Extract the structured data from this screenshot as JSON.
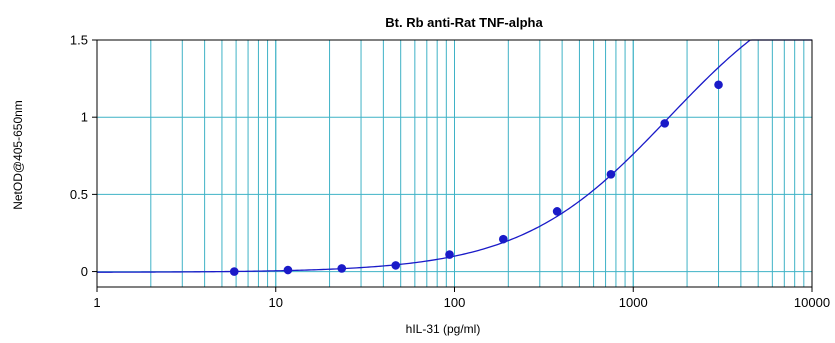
{
  "chart_data": {
    "type": "scatter",
    "title": "Bt. Rb anti-Rat TNF-alpha",
    "xlabel": "hIL-31 (pg/ml)",
    "ylabel": "NetOD@405-650nm",
    "xscale": "log",
    "xlim": [
      1,
      10000
    ],
    "ylim": [
      -0.1,
      1.5
    ],
    "x_ticks": [
      1,
      10,
      100,
      1000,
      10000
    ],
    "x_tick_labels": [
      "1",
      "10",
      "100",
      "1000",
      "10000"
    ],
    "y_ticks": [
      0,
      0.5,
      1,
      1.5
    ],
    "y_tick_labels": [
      "0",
      "0.5",
      "1",
      "1.5"
    ],
    "grid": true,
    "legend": "none",
    "series": [
      {
        "marker": "circle",
        "points": [
          {
            "x": 5.86,
            "y": 0.0
          },
          {
            "x": 11.7,
            "y": 0.01
          },
          {
            "x": 23.4,
            "y": 0.02
          },
          {
            "x": 46.9,
            "y": 0.04
          },
          {
            "x": 93.8,
            "y": 0.11
          },
          {
            "x": 187.5,
            "y": 0.21
          },
          {
            "x": 375,
            "y": 0.39
          },
          {
            "x": 750,
            "y": 0.63
          },
          {
            "x": 1500,
            "y": 0.96
          },
          {
            "x": 3000,
            "y": 1.21
          }
        ]
      }
    ],
    "fit_curve": {
      "type": "4PL",
      "bottom": -0.005,
      "top": 2.0,
      "ec50": 1580,
      "hill": 1.05
    },
    "colors": {
      "grid": "#3fb2c6",
      "series": "#1a1ac8",
      "frame": "#000000"
    }
  }
}
